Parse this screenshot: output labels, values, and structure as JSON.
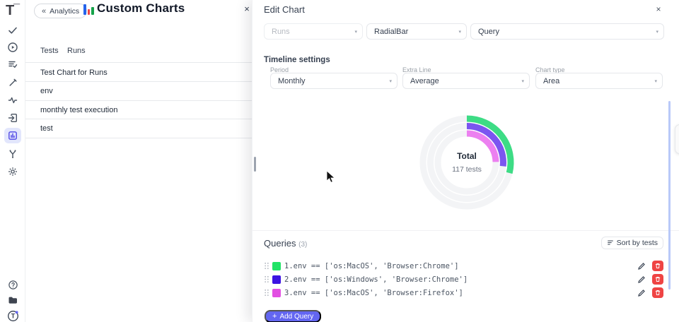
{
  "app": {
    "logo_letter": "T"
  },
  "sidebar": {
    "items": [
      "checks",
      "runs",
      "test-plans",
      "wrench",
      "activity",
      "launches",
      "analytics-charts",
      "branches",
      "settings"
    ],
    "active_item": "analytics-charts",
    "bottom": [
      "help",
      "projects",
      "account"
    ]
  },
  "header": {
    "back_label": "Analytics",
    "back_chevron": "«",
    "title": "Custom Charts",
    "close_glyph": "×",
    "title_icon_colors": [
      "#2563eb",
      "#ef4444",
      "#16a34a"
    ]
  },
  "tabs": [
    {
      "label": "Tests"
    },
    {
      "label": "Runs"
    }
  ],
  "chart_list": [
    "Test Chart for Runs",
    "env",
    "monthly test execution",
    "test"
  ],
  "drawer": {
    "title": "Edit Chart",
    "close_glyph": "×",
    "caret_glyph": "▾",
    "top_selects": {
      "source": "Runs",
      "chart_kind": "RadialBar",
      "mode": "Query"
    },
    "timeline": {
      "heading": "Timeline settings",
      "period_label": "Period",
      "period_value": "Monthly",
      "extra_line_label": "Extra Line",
      "extra_line_value": "Average",
      "chart_type_label": "Chart type",
      "chart_type_value": "Area"
    },
    "queries": {
      "heading": "Queries",
      "count": "(3)",
      "sort_label": "Sort by tests",
      "items": [
        {
          "color": "#21e366",
          "text": "1.env == ['os:MacOS', 'Browser:Chrome']"
        },
        {
          "color": "#3c13e2",
          "text": "2.env == ['os:Windows', 'Browser:Chrome']"
        },
        {
          "color": "#e24fe2",
          "text": "3.env == ['os:MacOS', 'Browser:Firefox']"
        }
      ],
      "add_label": "Add Query",
      "add_plus": "+"
    }
  },
  "chart_data": {
    "type": "pie",
    "variant": "radial-bar",
    "center_label": "Total",
    "center_sublabel": "117 tests",
    "total_tests": 117,
    "start_angle_deg": 0,
    "direction": "clockwise",
    "track_color": "#f3f4f6",
    "ring_stroke_width": 9,
    "ring_radii": [
      62,
      51.5,
      41
    ],
    "rings": [
      {
        "name": "env == ['os:MacOS', 'Browser:Chrome']",
        "color": "#3ddc85",
        "sweep_deg": 104
      },
      {
        "name": "env == ['os:Windows', 'Browser:Chrome']",
        "color": "#7b55f0",
        "sweep_deg": 96
      },
      {
        "name": "env == ['os:MacOS', 'Browser:Firefox']",
        "color": "#ec80f0",
        "sweep_deg": 89
      }
    ]
  }
}
